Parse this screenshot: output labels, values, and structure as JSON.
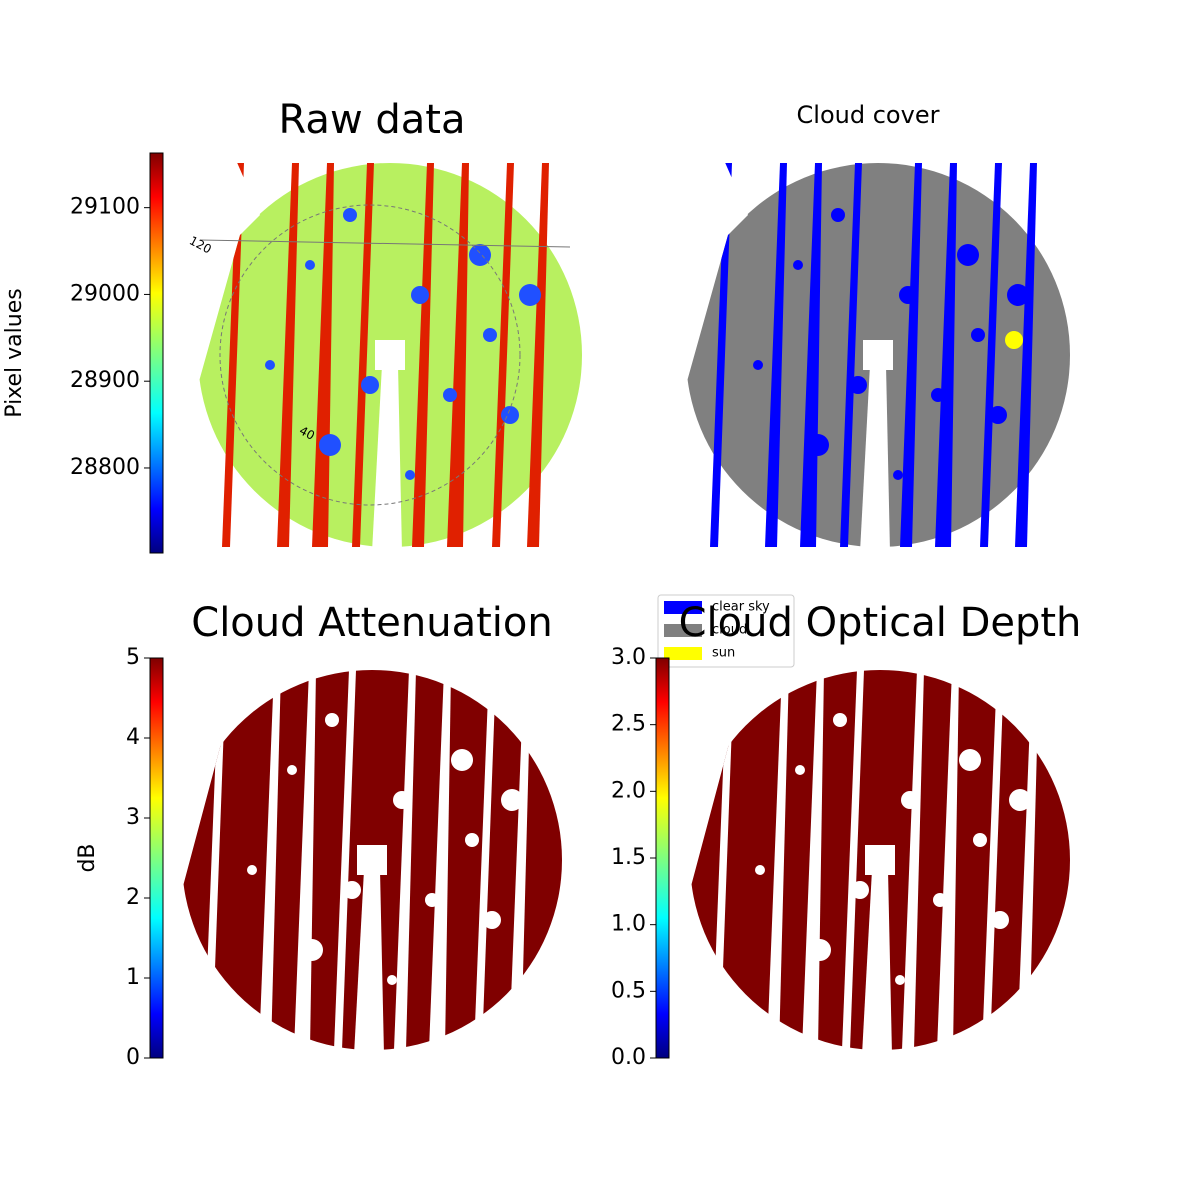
{
  "chart_data": [
    {
      "type": "image",
      "title": "Raw data",
      "colorbar_label": "Pixel values",
      "colormap": "jet",
      "clim": [
        28702,
        29163
      ],
      "cticks": [
        28800,
        28900,
        29000,
        29100
      ],
      "polar_labels": [
        "120",
        "40"
      ]
    },
    {
      "type": "image",
      "title": "Cloud cover",
      "series": [
        {
          "name": "clear sky",
          "color": "#0000ff"
        },
        {
          "name": "cloud",
          "color": "#808080"
        },
        {
          "name": "sun",
          "color": "#ffff00"
        }
      ]
    },
    {
      "type": "image",
      "title": "Cloud Attenuation",
      "colorbar_label": "dB",
      "colormap": "jet",
      "clim": [
        0,
        5
      ],
      "cticks": [
        0,
        1,
        2,
        3,
        4,
        5
      ]
    },
    {
      "type": "image",
      "title": "Cloud Optical Depth",
      "colormap": "jet",
      "clim": [
        0,
        3
      ],
      "cticks": [
        {
          "value": 0,
          "label": "0.0"
        },
        0.5,
        {
          "value": 1,
          "label": "1.0"
        },
        1.5,
        {
          "value": 2,
          "label": "2.0"
        },
        2.5,
        {
          "value": 3,
          "label": "3.0"
        }
      ]
    }
  ]
}
